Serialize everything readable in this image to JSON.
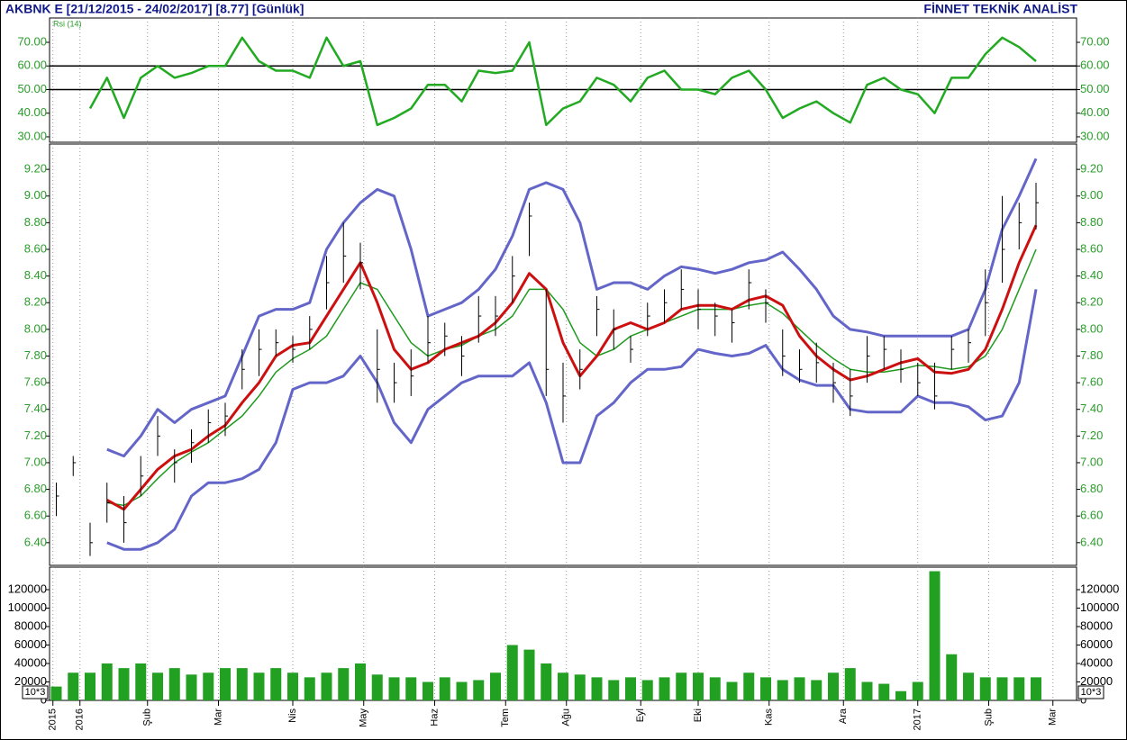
{
  "chart_data": [
    {
      "type": "ohlc",
      "title": "AKBNK E  [21/12/2015 - 24/02/2017]  [8.77]  [Günlük]",
      "subtitle": "FİNNET TEKNİK ANALİST",
      "x": [
        2,
        7,
        12,
        17,
        22,
        27,
        32,
        37,
        42,
        47,
        52,
        57,
        62,
        67,
        72,
        77,
        82,
        87,
        92,
        97,
        102,
        107,
        112,
        117,
        122,
        127,
        132,
        137,
        142,
        147,
        152,
        157,
        162,
        167,
        172,
        177,
        182,
        187,
        192,
        197,
        202,
        207,
        212,
        217,
        222,
        227,
        232,
        237,
        242,
        247,
        252,
        257,
        262,
        267,
        272,
        277,
        282,
        287,
        292
      ],
      "xlim": [
        0,
        304
      ],
      "xticks": [
        {
          "value": 1,
          "label": "2015"
        },
        {
          "value": 9,
          "label": "2016"
        },
        {
          "value": 29,
          "label": "Şub"
        },
        {
          "value": 50,
          "label": "Mar"
        },
        {
          "value": 72,
          "label": "Nis"
        },
        {
          "value": 93,
          "label": "May"
        },
        {
          "value": 114,
          "label": "Haz"
        },
        {
          "value": 135,
          "label": "Tem"
        },
        {
          "value": 153,
          "label": "Ağu"
        },
        {
          "value": 175,
          "label": "Eyl"
        },
        {
          "value": 192,
          "label": "Eki"
        },
        {
          "value": 213,
          "label": "Kas"
        },
        {
          "value": 235,
          "label": "Ara"
        },
        {
          "value": 257,
          "label": "2017"
        },
        {
          "value": 278,
          "label": "Şub"
        },
        {
          "value": 297,
          "label": "Mar"
        }
      ],
      "ylim": [
        6.23,
        9.39
      ],
      "yticks": [
        {
          "value": 6.4,
          "label": "6.40"
        },
        {
          "value": 6.6,
          "label": "6.60"
        },
        {
          "value": 6.8,
          "label": "6.80"
        },
        {
          "value": 7.0,
          "label": "7.00"
        },
        {
          "value": 7.2,
          "label": "7.20"
        },
        {
          "value": 7.4,
          "label": "7.40"
        },
        {
          "value": 7.6,
          "label": "7.60"
        },
        {
          "value": 7.8,
          "label": "7.80"
        },
        {
          "value": 8.0,
          "label": "8.00"
        },
        {
          "value": 8.2,
          "label": "8.20"
        },
        {
          "value": 8.4,
          "label": "8.40"
        },
        {
          "value": 8.6,
          "label": "8.60"
        },
        {
          "value": 8.8,
          "label": "8.80"
        },
        {
          "value": 9.0,
          "label": "9.00"
        },
        {
          "value": 9.2,
          "label": "9.20"
        }
      ],
      "color": "#000000",
      "high": [
        6.85,
        7.05,
        6.55,
        6.85,
        6.75,
        7.05,
        7.35,
        7.1,
        7.25,
        7.4,
        7.45,
        7.85,
        8.0,
        8.0,
        7.95,
        8.1,
        8.55,
        8.8,
        8.65,
        8.0,
        7.75,
        7.85,
        8.1,
        8.05,
        7.95,
        8.25,
        8.25,
        8.55,
        8.95,
        8.3,
        7.75,
        7.85,
        8.25,
        8.15,
        7.95,
        8.2,
        8.3,
        8.45,
        8.3,
        8.2,
        8.15,
        8.45,
        8.3,
        8.0,
        7.85,
        7.9,
        7.75,
        7.7,
        7.95,
        7.95,
        7.85,
        7.75,
        7.75,
        7.95,
        8.0,
        8.45,
        9.0,
        8.95,
        9.1
      ],
      "low": [
        6.6,
        6.9,
        6.3,
        6.55,
        6.4,
        6.75,
        7.05,
        6.85,
        7.0,
        7.15,
        7.2,
        7.55,
        7.65,
        7.8,
        7.75,
        7.85,
        8.15,
        8.35,
        8.3,
        7.45,
        7.45,
        7.5,
        7.75,
        7.8,
        7.65,
        7.9,
        7.95,
        8.2,
        8.55,
        7.5,
        7.3,
        7.55,
        7.95,
        7.85,
        7.75,
        7.95,
        8.05,
        8.15,
        8.0,
        7.95,
        7.9,
        8.15,
        8.05,
        7.65,
        7.6,
        7.6,
        7.45,
        7.35,
        7.6,
        7.7,
        7.6,
        7.5,
        7.4,
        7.7,
        7.75,
        7.95,
        8.35,
        8.6,
        8.75
      ],
      "close": [
        6.75,
        7.0,
        6.4,
        6.7,
        6.55,
        6.9,
        7.2,
        7.0,
        7.15,
        7.3,
        7.35,
        7.7,
        7.85,
        7.9,
        7.85,
        8.0,
        8.35,
        8.55,
        8.5,
        7.7,
        7.6,
        7.65,
        7.9,
        7.95,
        7.8,
        8.1,
        8.1,
        8.4,
        8.85,
        7.7,
        7.5,
        7.7,
        8.15,
        8.0,
        7.85,
        8.1,
        8.2,
        8.3,
        8.15,
        8.1,
        8.05,
        8.35,
        8.2,
        7.8,
        7.7,
        7.75,
        7.6,
        7.5,
        7.8,
        7.85,
        7.7,
        7.6,
        7.5,
        7.85,
        7.9,
        8.2,
        8.6,
        8.8,
        8.95
      ],
      "series": [
        {
          "color": "#6366c8",
          "values": [
            null,
            null,
            null,
            7.1,
            7.05,
            7.2,
            7.4,
            7.3,
            7.4,
            7.45,
            7.5,
            7.8,
            8.1,
            8.15,
            8.15,
            8.2,
            8.6,
            8.8,
            8.95,
            9.05,
            9.0,
            8.6,
            8.1,
            8.15,
            8.2,
            8.3,
            8.45,
            8.7,
            9.05,
            9.1,
            9.05,
            8.8,
            8.3,
            8.35,
            8.35,
            8.3,
            8.4,
            8.47,
            8.45,
            8.42,
            8.45,
            8.5,
            8.52,
            8.58,
            8.45,
            8.3,
            8.1,
            8.0,
            7.98,
            7.95,
            7.95,
            7.95,
            7.95,
            7.95,
            8.0,
            8.3,
            8.75,
            9.0,
            9.28
          ]
        },
        {
          "color": "#6366c8",
          "values": [
            null,
            null,
            null,
            6.4,
            6.35,
            6.35,
            6.4,
            6.5,
            6.75,
            6.85,
            6.85,
            6.88,
            6.95,
            7.15,
            7.55,
            7.6,
            7.6,
            7.65,
            7.8,
            7.6,
            7.3,
            7.15,
            7.4,
            7.5,
            7.6,
            7.65,
            7.65,
            7.65,
            7.75,
            7.45,
            7.0,
            7.0,
            7.35,
            7.45,
            7.6,
            7.7,
            7.7,
            7.72,
            7.85,
            7.82,
            7.8,
            7.82,
            7.88,
            7.7,
            7.62,
            7.58,
            7.58,
            7.4,
            7.38,
            7.38,
            7.38,
            7.5,
            7.45,
            7.45,
            7.42,
            7.32,
            7.35,
            7.6,
            8.3
          ]
        },
        {
          "color": "#1f9a1f",
          "values": [
            null,
            null,
            null,
            6.7,
            6.68,
            6.75,
            6.88,
            7.0,
            7.08,
            7.15,
            7.25,
            7.35,
            7.5,
            7.68,
            7.78,
            7.85,
            7.95,
            8.15,
            8.35,
            8.3,
            8.1,
            7.9,
            7.8,
            7.85,
            7.88,
            7.95,
            8.0,
            8.1,
            8.3,
            8.3,
            8.15,
            7.9,
            7.8,
            7.85,
            7.95,
            8.0,
            8.05,
            8.1,
            8.15,
            8.15,
            8.15,
            8.18,
            8.2,
            8.12,
            8.0,
            7.88,
            7.78,
            7.7,
            7.68,
            7.68,
            7.7,
            7.73,
            7.72,
            7.7,
            7.72,
            7.8,
            8.0,
            8.3,
            8.6
          ]
        },
        {
          "color": "#cc1010",
          "values": [
            null,
            null,
            null,
            6.72,
            6.65,
            6.8,
            6.95,
            7.05,
            7.1,
            7.2,
            7.28,
            7.45,
            7.6,
            7.8,
            7.88,
            7.9,
            8.1,
            8.3,
            8.5,
            8.2,
            7.85,
            7.7,
            7.75,
            7.85,
            7.9,
            7.95,
            8.05,
            8.2,
            8.42,
            8.3,
            7.9,
            7.65,
            7.8,
            8.0,
            8.05,
            8.0,
            8.05,
            8.15,
            8.18,
            8.18,
            8.15,
            8.22,
            8.25,
            8.18,
            7.95,
            7.8,
            7.7,
            7.62,
            7.65,
            7.7,
            7.75,
            7.78,
            7.68,
            7.67,
            7.7,
            7.85,
            8.15,
            8.5,
            8.78
          ]
        }
      ]
    },
    {
      "type": "line",
      "ylim": [
        27.7,
        80.3
      ],
      "yticks": [
        {
          "value": 30,
          "label": "30.00"
        },
        {
          "value": 40,
          "label": "40.00"
        },
        {
          "value": 50,
          "label": "50.00"
        },
        {
          "value": 60,
          "label": "60.00"
        },
        {
          "value": 70,
          "label": "70.00"
        }
      ],
      "hlines": [
        50,
        60
      ],
      "series": [
        {
          "name": "Rsi (14)",
          "color": "#22aa22",
          "values": [
            null,
            null,
            42,
            55,
            38,
            55,
            60,
            55,
            57,
            60,
            60,
            72,
            62,
            58,
            58,
            55,
            72,
            60,
            62,
            35,
            38,
            42,
            52,
            52,
            45,
            58,
            57,
            58,
            70,
            35,
            42,
            45,
            55,
            52,
            45,
            55,
            58,
            50,
            50,
            48,
            55,
            58,
            50,
            38,
            42,
            45,
            40,
            36,
            52,
            55,
            50,
            48,
            40,
            55,
            55,
            65,
            72,
            68,
            62
          ]
        }
      ]
    },
    {
      "type": "bar",
      "ylim": [
        0,
        144400
      ],
      "yticks": [
        0,
        20000,
        40000,
        60000,
        80000,
        100000,
        120000
      ],
      "annotation": "10*3",
      "color": "#22a022",
      "values": [
        15000,
        30000,
        30000,
        40000,
        35000,
        40000,
        30000,
        35000,
        28000,
        30000,
        35000,
        35000,
        30000,
        35000,
        30000,
        25000,
        30000,
        35000,
        40000,
        28000,
        25000,
        25000,
        20000,
        25000,
        20000,
        22000,
        30000,
        60000,
        55000,
        40000,
        30000,
        28000,
        25000,
        22000,
        25000,
        22000,
        25000,
        30000,
        30000,
        25000,
        20000,
        30000,
        25000,
        22000,
        25000,
        22000,
        30000,
        35000,
        20000,
        18000,
        10000,
        20000,
        140000,
        50000,
        30000,
        25000,
        25000,
        25000,
        25000
      ]
    }
  ]
}
